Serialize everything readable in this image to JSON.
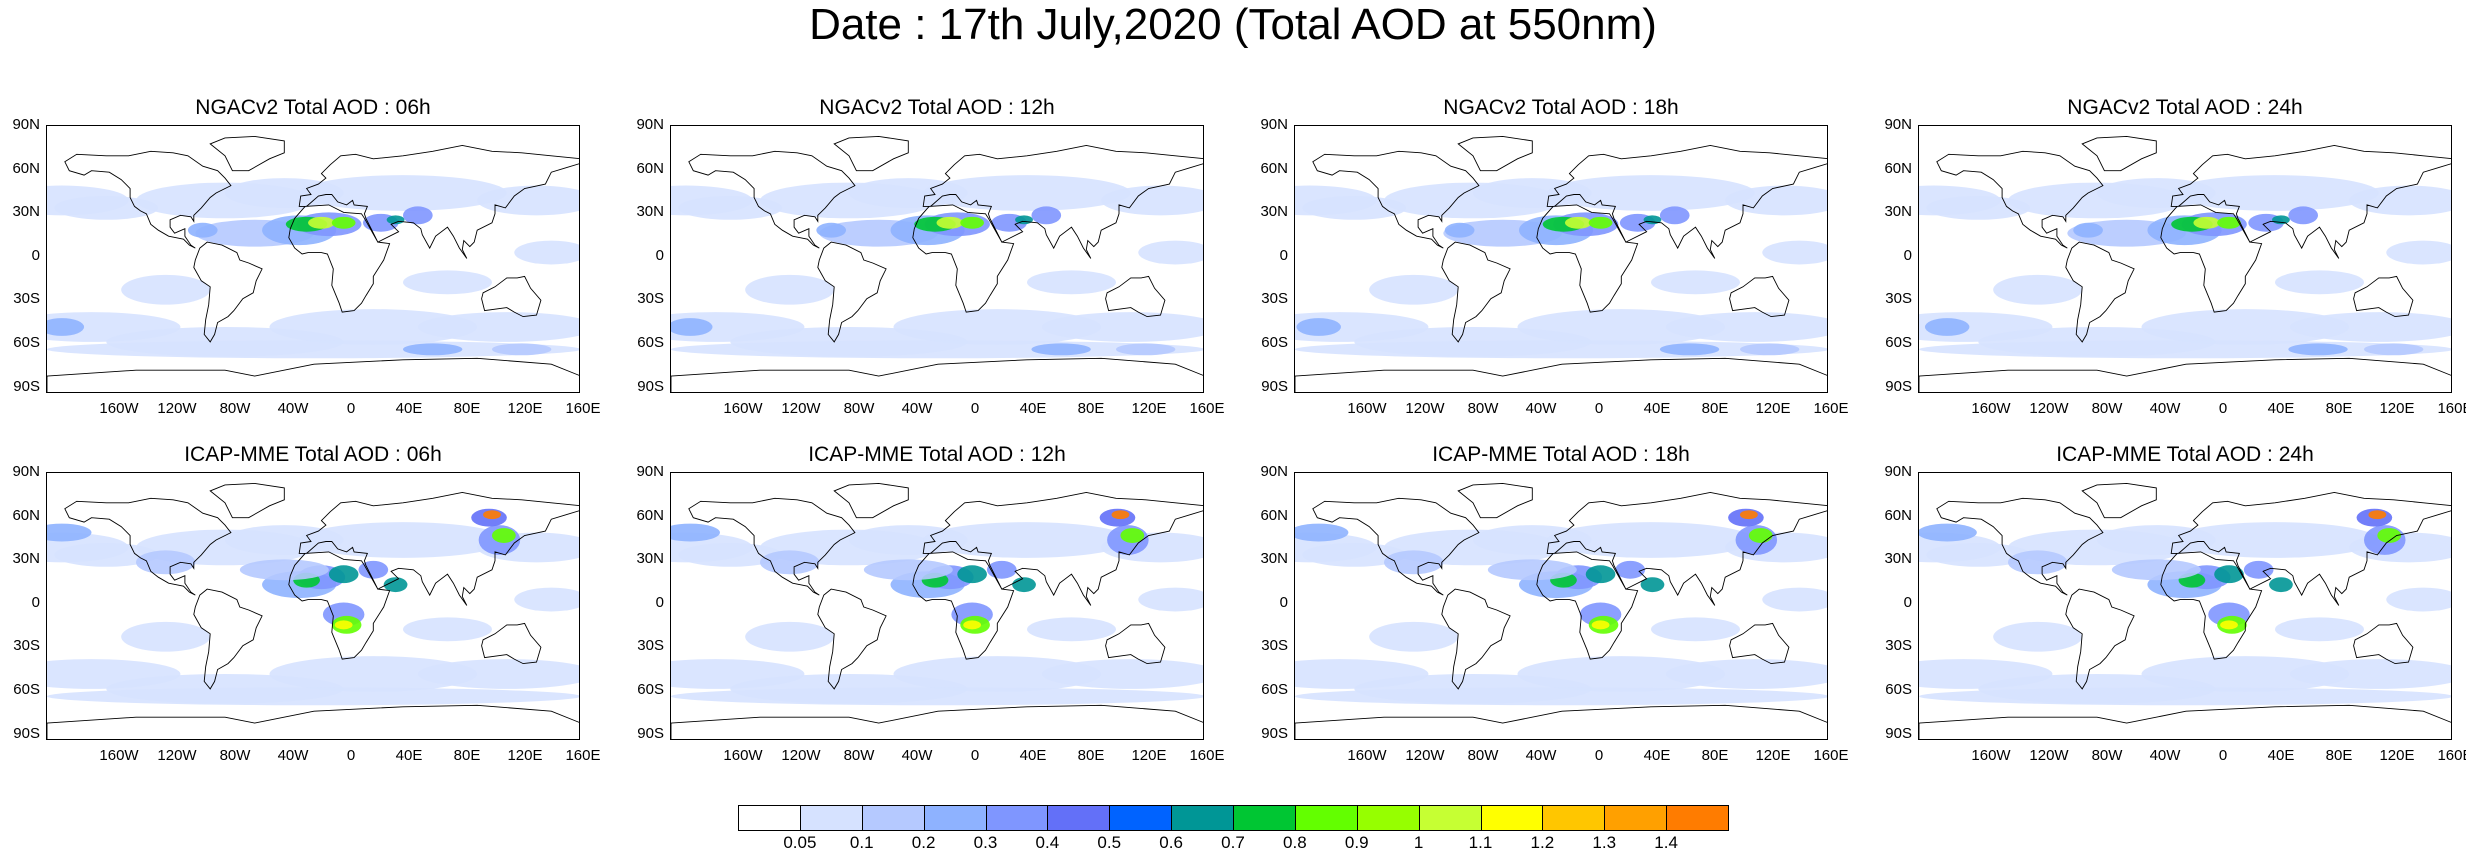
{
  "title": "Date : 17th July,2020 (Total AOD at 550nm)",
  "lat_ticks": [
    "90N",
    "60N",
    "30N",
    "0",
    "30S",
    "60S",
    "90S"
  ],
  "lon_ticks": [
    "160W",
    "120W",
    "80W",
    "40W",
    "0",
    "40E",
    "80E",
    "120E",
    "160E"
  ],
  "panels": [
    {
      "title": "NGACv2 Total AOD : 06h",
      "model": "NGACv2",
      "lead": "06h"
    },
    {
      "title": "NGACv2 Total AOD : 12h",
      "model": "NGACv2",
      "lead": "12h"
    },
    {
      "title": "NGACv2 Total AOD : 18h",
      "model": "NGACv2",
      "lead": "18h"
    },
    {
      "title": "NGACv2 Total AOD : 24h",
      "model": "NGACv2",
      "lead": "24h"
    },
    {
      "title": "ICAP-MME Total AOD : 06h",
      "model": "ICAP-MME",
      "lead": "06h"
    },
    {
      "title": "ICAP-MME Total AOD : 12h",
      "model": "ICAP-MME",
      "lead": "12h"
    },
    {
      "title": "ICAP-MME Total AOD : 18h",
      "model": "ICAP-MME",
      "lead": "18h"
    },
    {
      "title": "ICAP-MME Total AOD : 24h",
      "model": "ICAP-MME",
      "lead": "24h"
    }
  ],
  "colorbar": {
    "labels": [
      "0.05",
      "0.1",
      "0.2",
      "0.3",
      "0.4",
      "0.5",
      "0.6",
      "0.7",
      "0.8",
      "0.9",
      "1",
      "1.1",
      "1.2",
      "1.3",
      "1.4"
    ],
    "colors": [
      "#ffffff",
      "#d6e2ff",
      "#b5c9ff",
      "#8eb2ff",
      "#7f96ff",
      "#6370f8",
      "#0063ff",
      "#009696",
      "#00c633",
      "#63ff00",
      "#96ff00",
      "#c6ff33",
      "#ffff00",
      "#ffc600",
      "#ffa000",
      "#ff7c00",
      "#ff1900"
    ]
  }
}
